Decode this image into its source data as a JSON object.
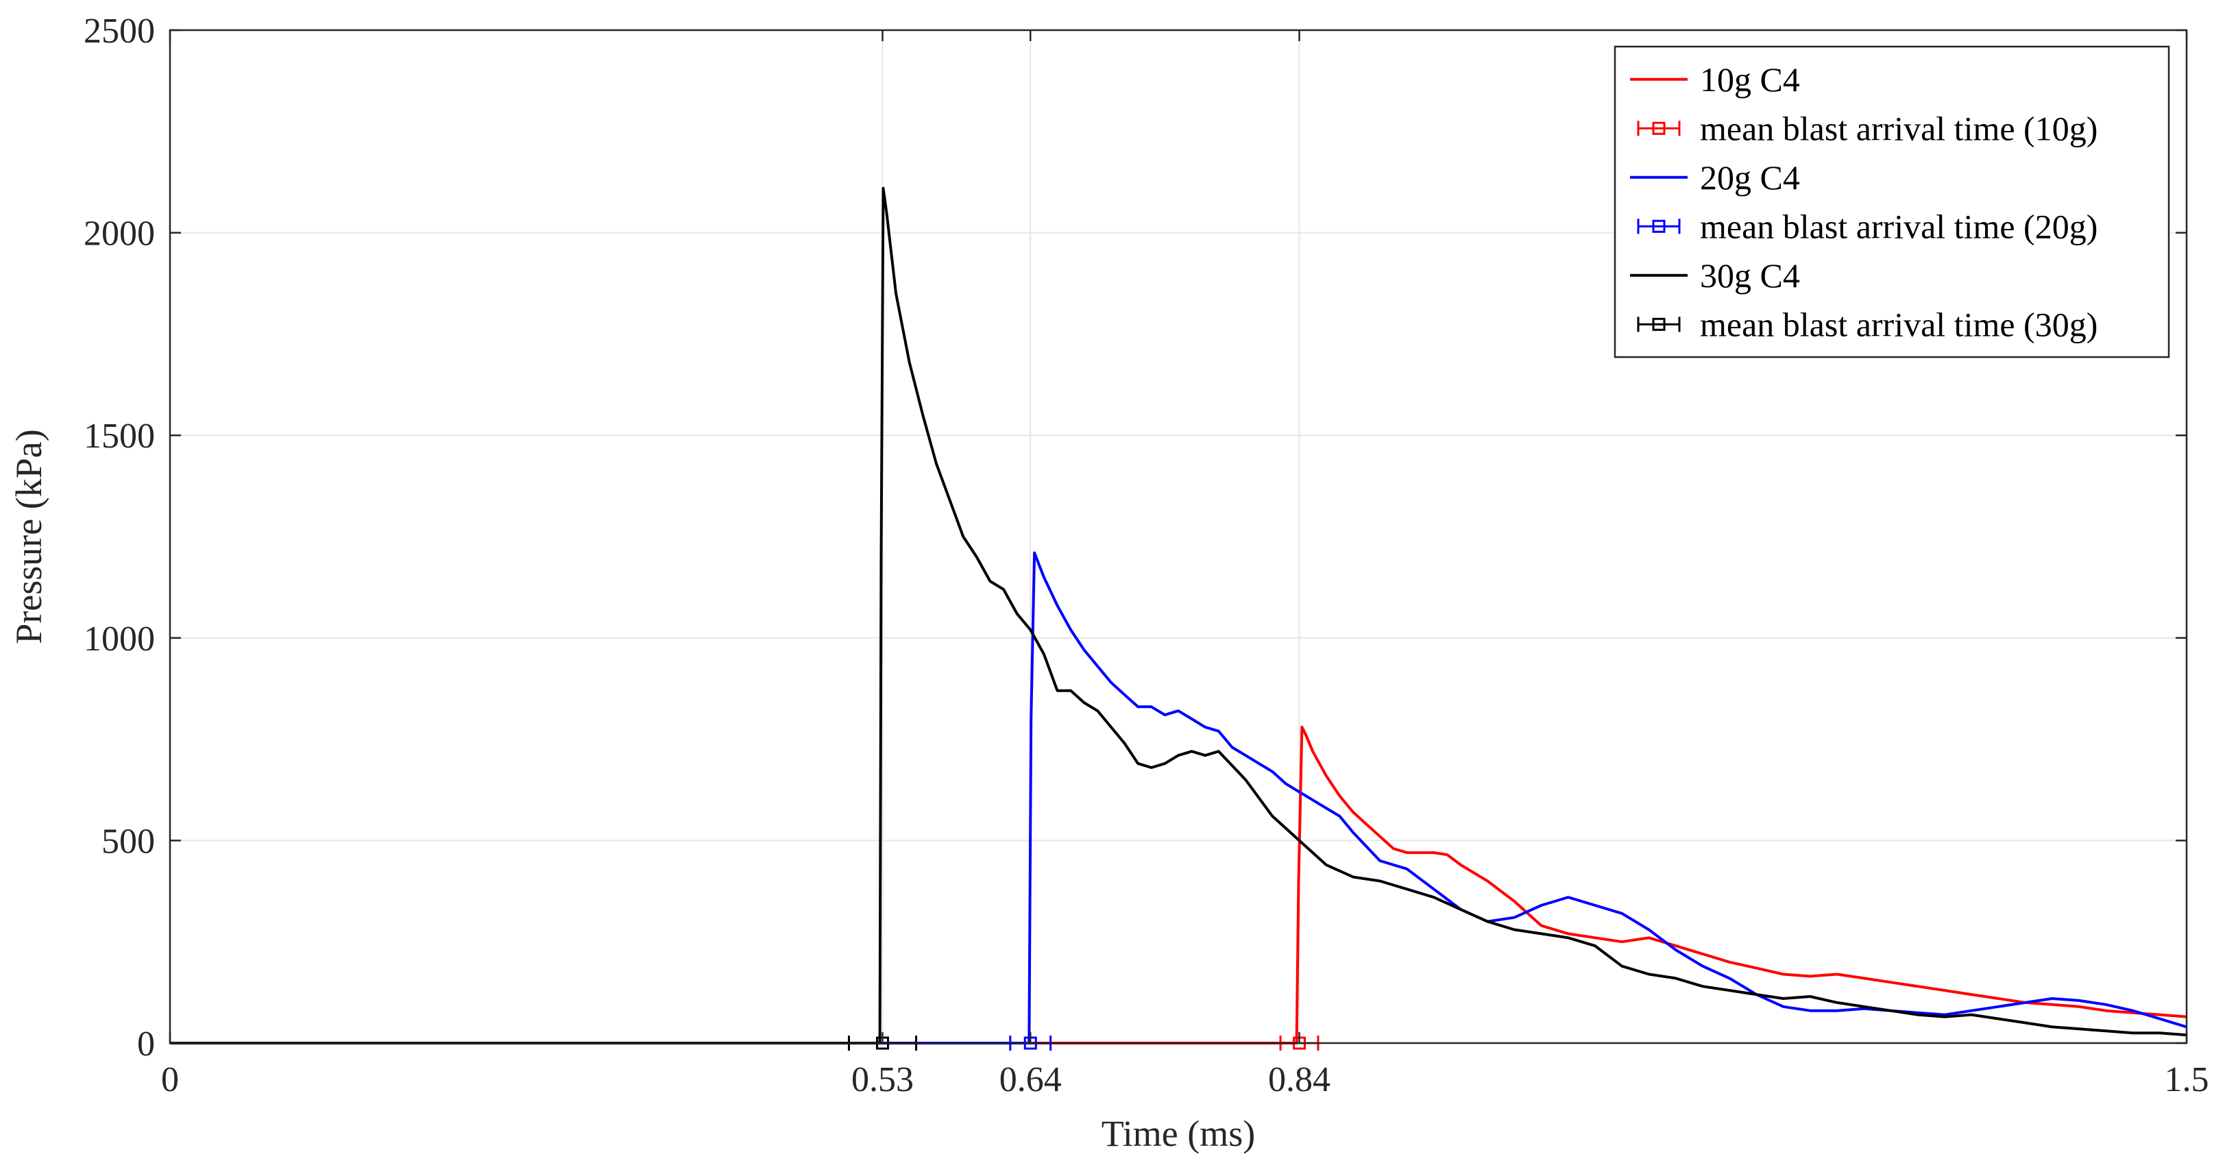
{
  "chart_data": {
    "type": "line",
    "xlabel": "Time (ms)",
    "ylabel": "Pressure (kPa)",
    "xlim": [
      0,
      1.5
    ],
    "ylim": [
      0,
      2500
    ],
    "xticks": [
      0,
      0.53,
      0.64,
      0.84,
      1.5
    ],
    "xtick_labels": [
      "0",
      "0.53",
      "0.64",
      "0.84",
      "1.5"
    ],
    "yticks": [
      0,
      500,
      1000,
      1500,
      2000,
      2500
    ],
    "ytick_labels": [
      "0",
      "500",
      "1000",
      "1500",
      "2000",
      "2500"
    ],
    "grid": true,
    "legend_position": "top-right",
    "series": [
      {
        "name": "10g C4",
        "color": "#ff0000",
        "x": [
          0,
          0.838,
          0.8395,
          0.842,
          0.845,
          0.85,
          0.86,
          0.87,
          0.88,
          0.89,
          0.9,
          0.91,
          0.92,
          0.93,
          0.94,
          0.95,
          0.96,
          0.98,
          1.0,
          1.02,
          1.04,
          1.06,
          1.08,
          1.1,
          1.12,
          1.14,
          1.16,
          1.18,
          1.2,
          1.22,
          1.24,
          1.26,
          1.28,
          1.3,
          1.32,
          1.34,
          1.36,
          1.38,
          1.4,
          1.42,
          1.44,
          1.46,
          1.48,
          1.5
        ],
        "y": [
          0,
          0,
          400,
          780,
          760,
          720,
          660,
          610,
          570,
          540,
          510,
          480,
          470,
          470,
          470,
          465,
          440,
          400,
          350,
          290,
          270,
          260,
          250,
          260,
          240,
          220,
          200,
          185,
          170,
          165,
          170,
          160,
          150,
          140,
          130,
          120,
          110,
          100,
          95,
          90,
          80,
          75,
          70,
          65
        ]
      },
      {
        "name": "20g C4",
        "color": "#0000ff",
        "x": [
          0,
          0.639,
          0.6405,
          0.643,
          0.65,
          0.66,
          0.67,
          0.68,
          0.69,
          0.7,
          0.71,
          0.72,
          0.73,
          0.74,
          0.75,
          0.76,
          0.77,
          0.78,
          0.79,
          0.8,
          0.81,
          0.82,
          0.83,
          0.84,
          0.85,
          0.86,
          0.87,
          0.88,
          0.9,
          0.92,
          0.94,
          0.96,
          0.98,
          1.0,
          1.02,
          1.04,
          1.06,
          1.08,
          1.1,
          1.12,
          1.14,
          1.16,
          1.18,
          1.2,
          1.22,
          1.24,
          1.26,
          1.28,
          1.3,
          1.32,
          1.34,
          1.36,
          1.38,
          1.4,
          1.42,
          1.44,
          1.46,
          1.48,
          1.5
        ],
        "y": [
          0,
          0,
          800,
          1210,
          1150,
          1080,
          1020,
          970,
          930,
          890,
          860,
          830,
          830,
          810,
          820,
          800,
          780,
          770,
          730,
          710,
          690,
          670,
          640,
          620,
          600,
          580,
          560,
          520,
          450,
          430,
          380,
          330,
          300,
          310,
          340,
          360,
          340,
          320,
          280,
          230,
          190,
          160,
          120,
          90,
          80,
          80,
          85,
          80,
          75,
          70,
          80,
          90,
          100,
          110,
          105,
          95,
          80,
          60,
          40
        ]
      },
      {
        "name": "30g C4",
        "color": "#000000",
        "x": [
          0,
          0.528,
          0.529,
          0.5305,
          0.533,
          0.54,
          0.55,
          0.56,
          0.57,
          0.58,
          0.59,
          0.6,
          0.61,
          0.62,
          0.63,
          0.64,
          0.65,
          0.66,
          0.67,
          0.68,
          0.69,
          0.7,
          0.71,
          0.72,
          0.73,
          0.74,
          0.75,
          0.76,
          0.77,
          0.78,
          0.8,
          0.82,
          0.84,
          0.86,
          0.88,
          0.9,
          0.92,
          0.94,
          0.96,
          0.98,
          1.0,
          1.02,
          1.04,
          1.06,
          1.08,
          1.1,
          1.12,
          1.14,
          1.16,
          1.18,
          1.2,
          1.22,
          1.24,
          1.26,
          1.28,
          1.3,
          1.32,
          1.34,
          1.36,
          1.38,
          1.4,
          1.42,
          1.44,
          1.46,
          1.48,
          1.5
        ],
        "y": [
          0,
          0,
          1200,
          2110,
          2050,
          1850,
          1680,
          1550,
          1430,
          1340,
          1250,
          1200,
          1140,
          1120,
          1060,
          1020,
          960,
          870,
          870,
          840,
          820,
          780,
          740,
          690,
          680,
          690,
          710,
          720,
          710,
          720,
          650,
          560,
          500,
          440,
          410,
          400,
          380,
          360,
          330,
          300,
          280,
          270,
          260,
          240,
          190,
          170,
          160,
          140,
          130,
          120,
          110,
          115,
          100,
          90,
          80,
          70,
          65,
          70,
          60,
          50,
          40,
          35,
          30,
          25,
          25,
          20
        ]
      }
    ],
    "error_bars": [
      {
        "name": "mean blast arrival time (10g)",
        "color": "#ff0000",
        "x": 0.84,
        "y": 0,
        "xerr": 0.014
      },
      {
        "name": "mean blast arrival time (20g)",
        "color": "#0000ff",
        "x": 0.64,
        "y": 0,
        "xerr": 0.015
      },
      {
        "name": "mean blast arrival time (30g)",
        "color": "#000000",
        "x": 0.53,
        "y": 0,
        "xerr": 0.025
      }
    ]
  },
  "legend": {
    "entries": [
      {
        "label": "10g C4",
        "kind": "line",
        "color": "#ff0000"
      },
      {
        "label": "mean blast arrival time (10g)",
        "kind": "errorbar",
        "color": "#ff0000"
      },
      {
        "label": "20g C4",
        "kind": "line",
        "color": "#0000ff"
      },
      {
        "label": "mean blast arrival time (20g)",
        "kind": "errorbar",
        "color": "#0000ff"
      },
      {
        "label": "30g C4",
        "kind": "line",
        "color": "#000000"
      },
      {
        "label": "mean blast arrival time (30g)",
        "kind": "errorbar",
        "color": "#000000"
      }
    ]
  }
}
